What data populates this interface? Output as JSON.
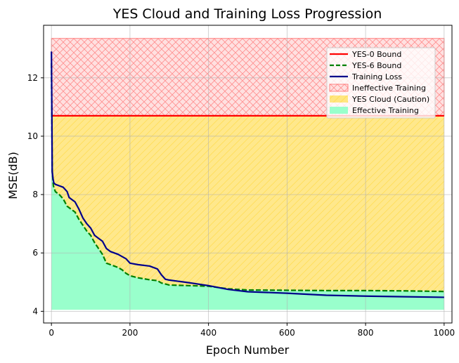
{
  "chart_data": {
    "type": "line",
    "title": "YES Cloud and Training Loss Progression",
    "xlabel": "Epoch Number",
    "ylabel": "MSE(dB)",
    "xlim": [
      -20,
      1020
    ],
    "ylim": [
      3.6,
      13.8
    ],
    "xticks": [
      0,
      200,
      400,
      600,
      800,
      1000
    ],
    "yticks": [
      4,
      6,
      8,
      10,
      12
    ],
    "grid": true,
    "legend_position": "top-right",
    "regions": {
      "x_range": [
        0,
        1000
      ],
      "ineffective": {
        "label": "Ineffective Training",
        "y_range": [
          10.7,
          13.35
        ],
        "color": "#ff9999"
      },
      "cloud": {
        "label": "YES Cloud (Caution)",
        "color": "#ffe680"
      },
      "effective": {
        "label": "Effective Training",
        "y_min": 4.05,
        "color": "#99ffcc"
      }
    },
    "series": [
      {
        "name": "YES-0 Bound",
        "style": "solid",
        "color": "#ff0000",
        "x": [
          0,
          1000
        ],
        "y": [
          10.7,
          10.7
        ]
      },
      {
        "name": "YES-6 Bound",
        "style": "dashed",
        "color": "#008000",
        "x": [
          0,
          2,
          5,
          10,
          20,
          30,
          40,
          50,
          60,
          70,
          80,
          90,
          100,
          110,
          120,
          130,
          140,
          150,
          160,
          170,
          180,
          190,
          200,
          220,
          250,
          270,
          280,
          300,
          350,
          400,
          450,
          500,
          600,
          700,
          800,
          900,
          1000
        ],
        "y": [
          12.5,
          8.8,
          8.3,
          8.1,
          8.0,
          7.85,
          7.6,
          7.5,
          7.4,
          7.15,
          6.95,
          6.75,
          6.6,
          6.35,
          6.15,
          5.95,
          5.65,
          5.6,
          5.55,
          5.5,
          5.42,
          5.3,
          5.22,
          5.15,
          5.08,
          5.05,
          4.97,
          4.9,
          4.88,
          4.86,
          4.77,
          4.73,
          4.72,
          4.71,
          4.71,
          4.7,
          4.68
        ]
      },
      {
        "name": "Training Loss",
        "style": "solid",
        "color": "#00008b",
        "x": [
          0,
          1,
          2,
          4,
          6,
          10,
          20,
          30,
          40,
          45,
          50,
          60,
          70,
          80,
          90,
          100,
          110,
          120,
          130,
          140,
          150,
          170,
          190,
          200,
          220,
          250,
          270,
          280,
          290,
          300,
          350,
          400,
          450,
          500,
          600,
          700,
          800,
          900,
          1000
        ],
        "y": [
          12.9,
          11.0,
          8.8,
          8.55,
          8.4,
          8.35,
          8.3,
          8.25,
          8.1,
          7.9,
          7.85,
          7.75,
          7.5,
          7.2,
          7.0,
          6.85,
          6.6,
          6.5,
          6.4,
          6.15,
          6.05,
          5.95,
          5.8,
          5.65,
          5.6,
          5.55,
          5.45,
          5.25,
          5.1,
          5.07,
          4.98,
          4.88,
          4.75,
          4.67,
          4.62,
          4.55,
          4.52,
          4.5,
          4.48
        ]
      }
    ]
  }
}
